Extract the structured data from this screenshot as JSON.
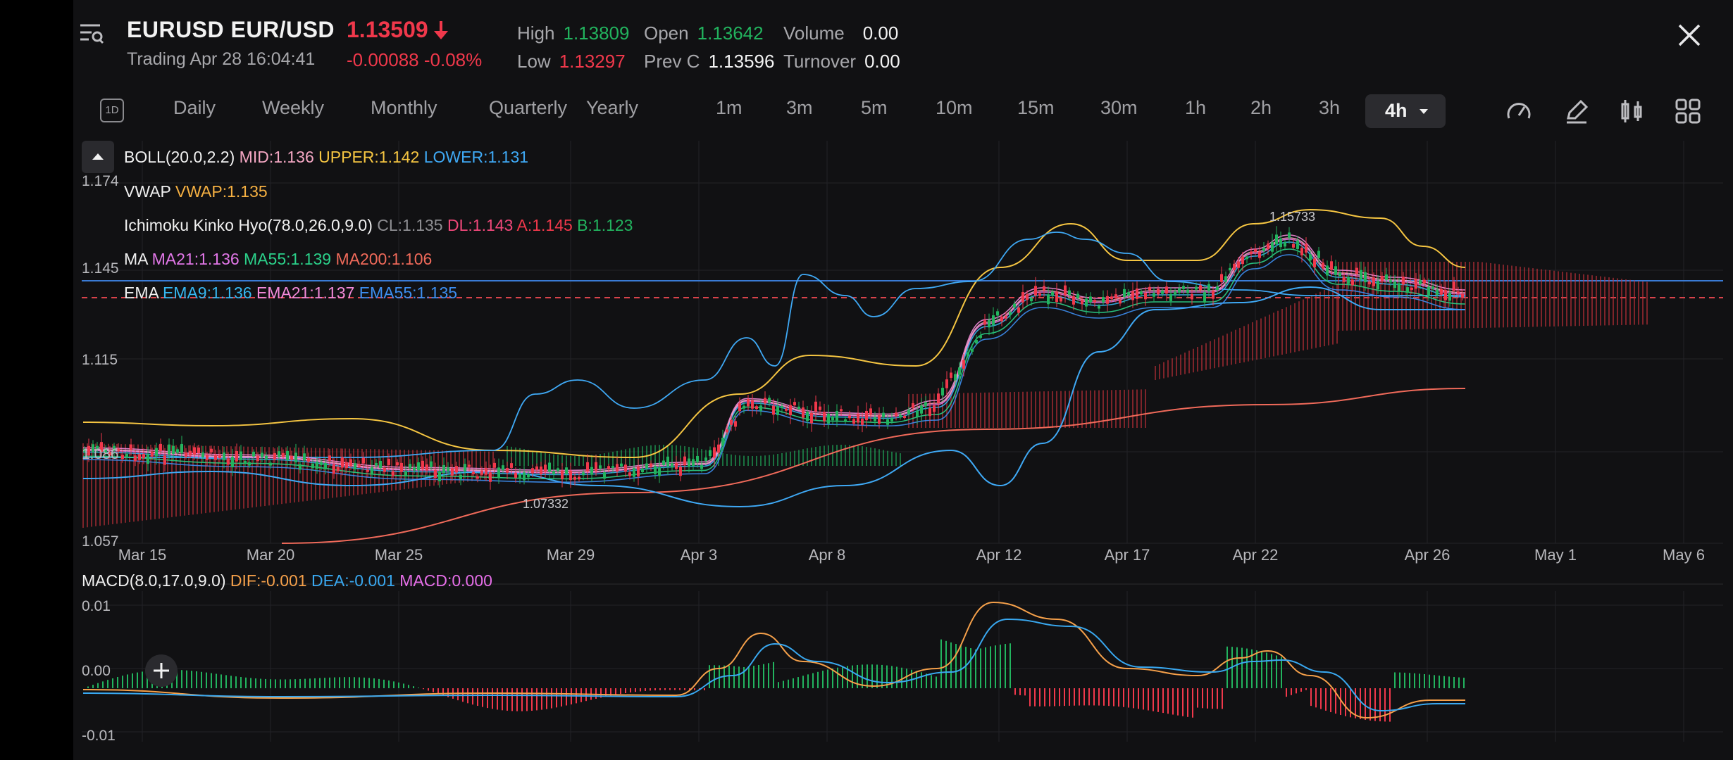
{
  "header": {
    "symbol": "EURUSD EUR/USD",
    "price": "1.13509",
    "status": "Trading  Apr 28 16:04:41",
    "change": "-0.00088 -0.08%",
    "stats": {
      "high_label": "High",
      "high": "1.13809",
      "low_label": "Low",
      "low": "1.13297",
      "open_label": "Open",
      "open": "1.13642",
      "prevc_label": "Prev C",
      "prevc": "1.13596",
      "volume_label": "Volume",
      "volume": "0.00",
      "turnover_label": "Turnover",
      "turnover": "0.00"
    },
    "icons": {
      "menu": "menu-search-icon",
      "price_direction": "arrow-down-icon",
      "close": "close-icon"
    }
  },
  "timeframes": {
    "oneD_badge": "1D",
    "items": [
      "Daily",
      "Weekly",
      "Monthly",
      "Quarterly",
      "Yearly",
      "1m",
      "3m",
      "5m",
      "10m",
      "15m",
      "30m",
      "1h",
      "2h",
      "3h"
    ],
    "active": "4h",
    "tools": [
      "speedometer-icon",
      "pencil-icon",
      "candle-icon",
      "grid-icon"
    ]
  },
  "indicators": {
    "boll": {
      "name": "BOLL(20.0,2.2)",
      "mid": "MID:1.136",
      "upper": "UPPER:1.142",
      "lower": "LOWER:1.131"
    },
    "vwap": {
      "name": "VWAP",
      "vwap": "VWAP:1.135"
    },
    "ichimoku": {
      "name": "Ichimoku Kinko Hyo(78.0,26.0,9.0)",
      "cl": "CL:1.135",
      "dl": "DL:1.143",
      "a": "A:1.145",
      "b": "B:1.123"
    },
    "ma": {
      "name": "MA",
      "ma21": "MA21:1.136",
      "ma55": "MA55:1.139",
      "ma200": "MA200:1.106"
    },
    "ema": {
      "name": "EMA",
      "ema9": "EMA9:1.136",
      "ema21": "EMA21:1.137",
      "ema55": "EMA55:1.135"
    }
  },
  "price_axis": [
    "1.174",
    "1.145",
    "1.115",
    "1.086",
    "1.057"
  ],
  "date_axis": [
    "Mar 15",
    "Mar 20",
    "Mar 25",
    "Mar 29",
    "Apr 3",
    "Apr 8",
    "Apr 12",
    "Apr 17",
    "Apr 22",
    "Apr 26",
    "May 1",
    "May 6"
  ],
  "annotations": {
    "high": "1.15733",
    "low": "1.07332"
  },
  "macd": {
    "name": "MACD(8.0,17.0,9.0)",
    "dif": "DIF:-0.001",
    "dea": "DEA:-0.001",
    "macd": "MACD:0.000",
    "axis": [
      "0.01",
      "0.00",
      "-0.01"
    ]
  },
  "colors": {
    "up": "#22b35e",
    "down": "#f0384b",
    "boll_mid": "#f4a7c3",
    "boll_upper": "#f5c542",
    "boll_lower": "#3fa9f5",
    "vwap": "#f5b042",
    "ma21": "#e277e8",
    "ma55": "#2bd18a",
    "ma200": "#f06a5a",
    "ema9": "#36b6f0",
    "ema21": "#f38ad9",
    "ema55": "#3d8ef0",
    "dif": "#f5a04a",
    "dea": "#39a8f0",
    "macd_label": "#e66ee8",
    "cl": "#9a9a9e"
  }
}
